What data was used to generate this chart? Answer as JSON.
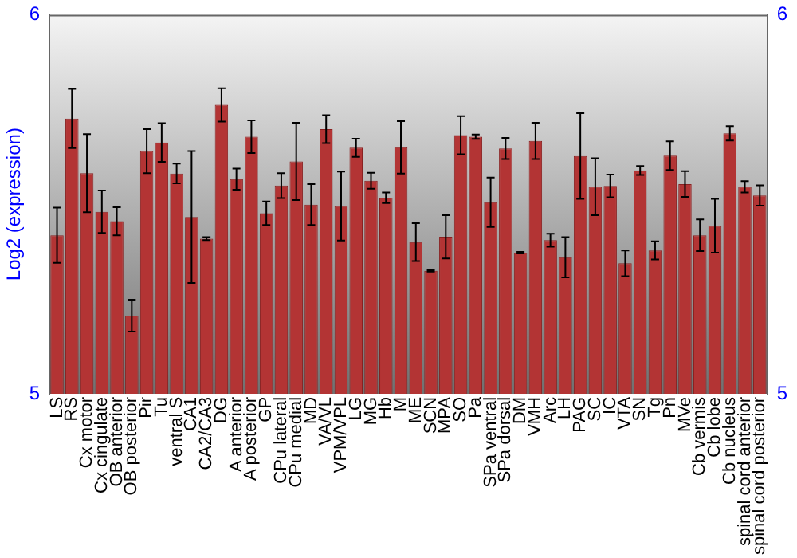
{
  "chart_data": {
    "type": "bar",
    "ylabel": "Log2 (expression)",
    "categories": [
      "LS",
      "RS",
      "Cx motor",
      "Cx cingulate",
      "OB anterior",
      "OB posterior",
      "Pir",
      "Tu",
      "ventral S",
      "CA1",
      "CA2/CA3",
      "DG",
      "A anterior",
      "A posterior",
      "GP",
      "CPu lateral",
      "CPu medial",
      "MD",
      "VA/VL",
      "VPM/VPL",
      "LG",
      "MG",
      "Hb",
      "M",
      "ME",
      "SCN",
      "MPA",
      "SO",
      "Pa",
      "SPa ventral",
      "SPa dorsal",
      "DM",
      "VMH",
      "Arc",
      "LH",
      "PAG",
      "SC",
      "IC",
      "VTA",
      "SN",
      "Tg",
      "Pn",
      "MVe",
      "Cb vermis",
      "Cb lobe",
      "Cb nucleus",
      "spinal cord anterior",
      "spinal cord posterior"
    ],
    "values": [
      5.418,
      5.726,
      5.582,
      5.48,
      5.455,
      5.206,
      5.64,
      5.663,
      5.581,
      5.466,
      5.409,
      5.762,
      5.566,
      5.678,
      5.476,
      5.549,
      5.613,
      5.499,
      5.698,
      5.495,
      5.649,
      5.562,
      5.517,
      5.65,
      5.4,
      5.324,
      5.414,
      5.682,
      5.678,
      5.505,
      5.647,
      5.372,
      5.667,
      5.405,
      5.36,
      5.627,
      5.546,
      5.548,
      5.344,
      5.589,
      5.378,
      5.628,
      5.553,
      5.418,
      5.443,
      5.687,
      5.546,
      5.523
    ],
    "errors": [
      0.073,
      0.078,
      0.103,
      0.056,
      0.037,
      0.042,
      0.058,
      0.051,
      0.026,
      0.174,
      0.004,
      0.044,
      0.028,
      0.043,
      0.031,
      0.033,
      0.102,
      0.054,
      0.037,
      0.091,
      0.024,
      0.021,
      0.014,
      0.069,
      0.05,
      0.002,
      0.057,
      0.05,
      0.006,
      0.065,
      0.028,
      0.002,
      0.048,
      0.017,
      0.053,
      0.113,
      0.075,
      0.03,
      0.034,
      0.012,
      0.024,
      0.038,
      0.034,
      0.042,
      0.071,
      0.019,
      0.015,
      0.027
    ],
    "color": "#b33434",
    "ylim": [
      5,
      6
    ],
    "yticks": [
      5,
      6
    ],
    "y2lim": [
      5,
      6
    ],
    "y2ticks": [
      5,
      6
    ],
    "grid": false,
    "legend": false
  }
}
